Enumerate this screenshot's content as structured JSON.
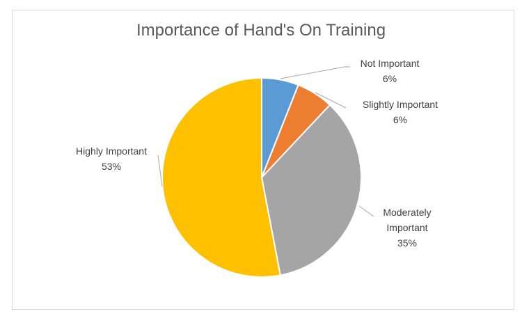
{
  "chart_data": {
    "type": "pie",
    "title": "Importance of Hand's On Training",
    "categories": [
      "Not Important",
      "Slightly Important",
      "Moderately Important",
      "Highly Important"
    ],
    "values": [
      6,
      6,
      35,
      53
    ],
    "value_labels": [
      "6%",
      "6%",
      "35%",
      "53%"
    ],
    "colors": [
      "#5b9bd5",
      "#ed7d31",
      "#a5a5a5",
      "#ffc000"
    ]
  }
}
